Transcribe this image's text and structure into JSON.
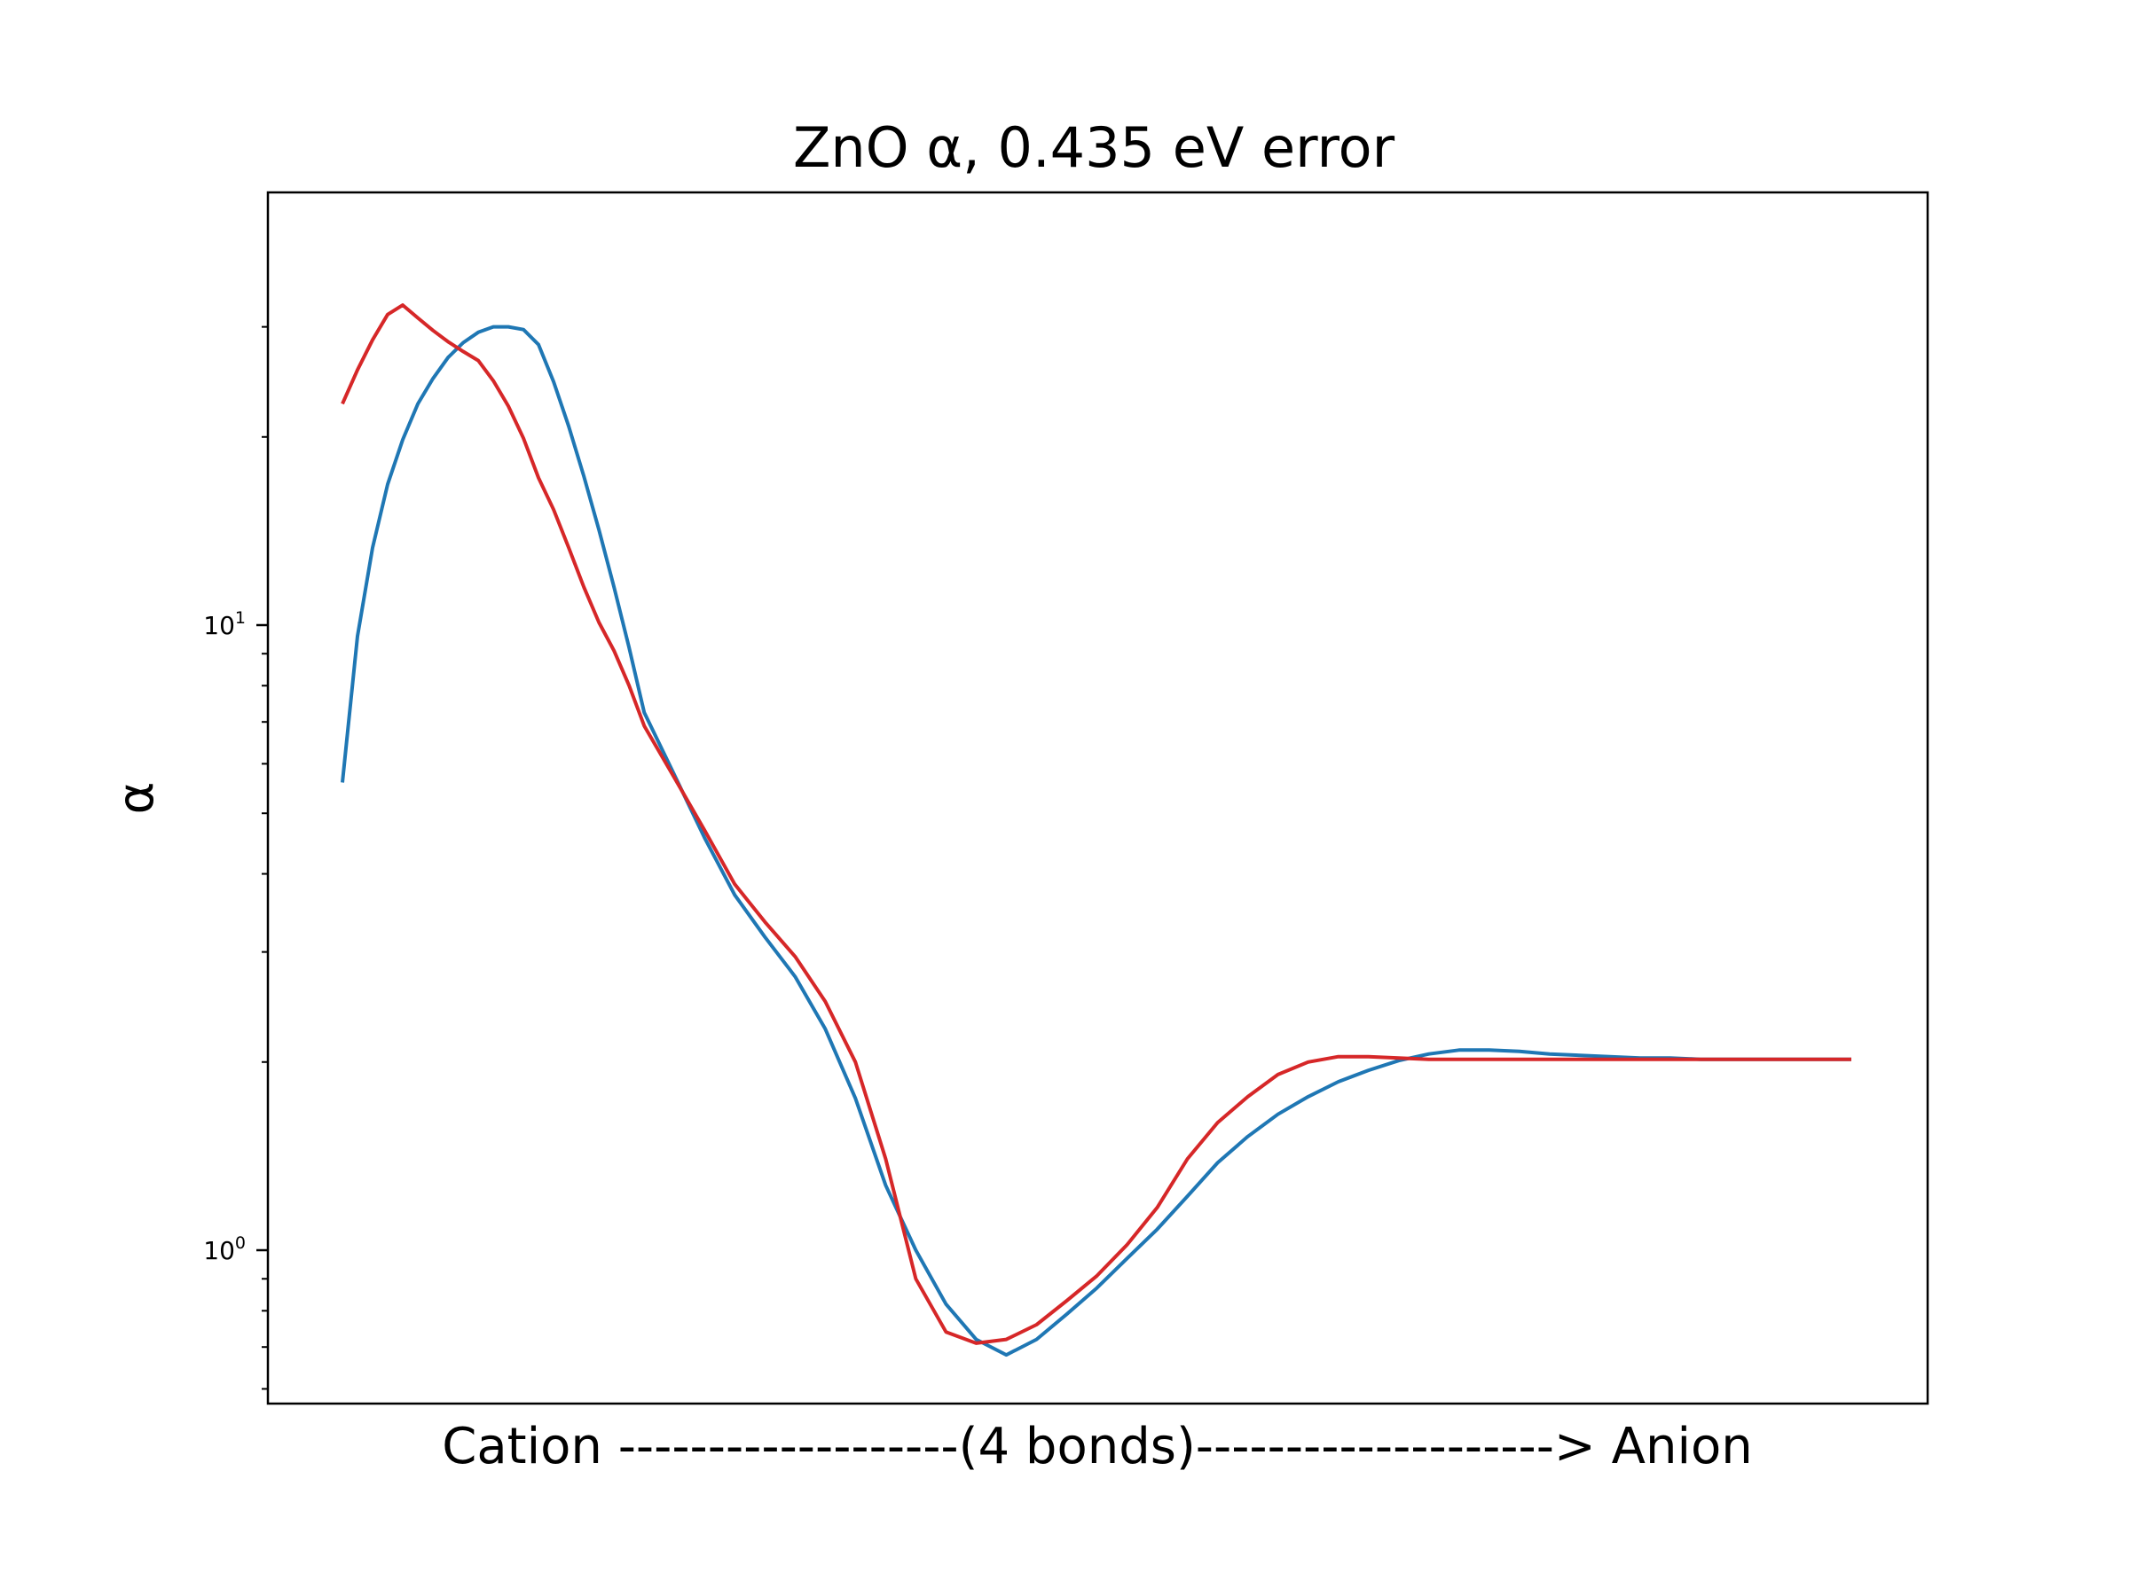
{
  "chart_data": {
    "type": "line",
    "title": "ZnO α, 0.435 eV error",
    "xlabel": "Cation -------------------(4 bonds)--------------------> Anion",
    "ylabel": "α",
    "yscale": "log",
    "ylim": [
      0.6,
      33
    ],
    "yticks": [
      {
        "base": "10",
        "exp": "0",
        "value": 1
      },
      {
        "base": "10",
        "exp": "1",
        "value": 10
      }
    ],
    "grid": false,
    "series": [
      {
        "color": "#1f77b4",
        "x": [
          0,
          1,
          2,
          3,
          4,
          5,
          6,
          7,
          8,
          9,
          10,
          11,
          12,
          13,
          14,
          15,
          16,
          17,
          18,
          19,
          20,
          22,
          24,
          26,
          28,
          30,
          32,
          34,
          36,
          38,
          40,
          42,
          44,
          46,
          48,
          50,
          52,
          54,
          56,
          58,
          60,
          62,
          64,
          66,
          68,
          70,
          72,
          74,
          76,
          78,
          80,
          82,
          84,
          86,
          88,
          90,
          92,
          94,
          96,
          98,
          100
        ],
        "y": [
          5.6,
          9.6,
          13.3,
          16.8,
          19.8,
          22.6,
          24.8,
          26.8,
          28.3,
          29.4,
          30.0,
          30.0,
          29.7,
          28.1,
          24.5,
          20.8,
          17.3,
          14.2,
          11.5,
          9.2,
          7.25,
          5.76,
          4.57,
          3.7,
          3.17,
          2.74,
          2.26,
          1.75,
          1.27,
          1.0,
          0.82,
          0.72,
          0.68,
          0.72,
          0.79,
          0.87,
          0.97,
          1.08,
          1.22,
          1.38,
          1.52,
          1.65,
          1.76,
          1.86,
          1.94,
          2.01,
          2.06,
          2.09,
          2.09,
          2.08,
          2.06,
          2.05,
          2.04,
          2.03,
          2.03,
          2.02,
          2.02,
          2.02,
          2.02,
          2.02,
          2.02
        ]
      },
      {
        "color": "#d62728",
        "x": [
          0,
          1,
          2,
          3,
          4,
          5,
          6,
          7,
          8,
          9,
          10,
          11,
          12,
          13,
          14,
          15,
          16,
          17,
          18,
          19,
          20,
          22,
          24,
          26,
          28,
          30,
          32,
          34,
          36,
          38,
          40,
          42,
          44,
          46,
          48,
          50,
          52,
          54,
          56,
          58,
          60,
          62,
          64,
          66,
          68,
          70,
          72,
          74,
          76,
          78,
          80,
          82,
          84,
          86,
          88,
          90,
          92,
          94,
          96,
          98,
          100
        ],
        "y": [
          22.6,
          25.6,
          28.6,
          31.4,
          32.5,
          31.0,
          29.6,
          28.4,
          27.4,
          26.5,
          24.6,
          22.4,
          19.9,
          17.2,
          15.3,
          13.3,
          11.5,
          10.1,
          9.1,
          8.0,
          6.9,
          5.7,
          4.7,
          3.85,
          3.35,
          2.95,
          2.5,
          2.0,
          1.4,
          0.9,
          0.74,
          0.71,
          0.72,
          0.76,
          0.83,
          0.91,
          1.02,
          1.17,
          1.4,
          1.6,
          1.76,
          1.91,
          2.0,
          2.04,
          2.04,
          2.03,
          2.02,
          2.02,
          2.02,
          2.02,
          2.02,
          2.02,
          2.02,
          2.02,
          2.02,
          2.02,
          2.02,
          2.02,
          2.02,
          2.02,
          2.02
        ]
      }
    ]
  }
}
